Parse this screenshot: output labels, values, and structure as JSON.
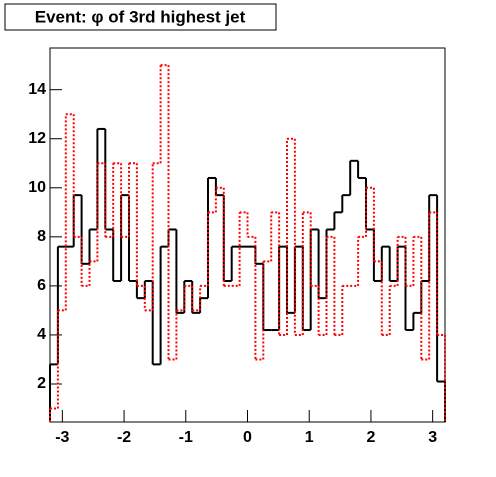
{
  "chart_data": {
    "type": "histogram",
    "title": "Event: φ of 3rd highest jet",
    "bins": [
      -3.2,
      -3.072,
      -2.944,
      -2.816,
      -2.688,
      -2.56,
      -2.432,
      -2.304,
      -2.176,
      -2.048,
      -1.92,
      -1.792,
      -1.664,
      -1.536,
      -1.408,
      -1.28,
      -1.152,
      -1.024,
      -0.896,
      -0.768,
      -0.64,
      -0.512,
      -0.384,
      -0.256,
      -0.128,
      0,
      0.128,
      0.256,
      0.384,
      0.512,
      0.64,
      0.768,
      0.896,
      1.024,
      1.152,
      1.28,
      1.408,
      1.536,
      1.664,
      1.792,
      1.92,
      2.048,
      2.176,
      2.304,
      2.432,
      2.56,
      2.688,
      2.816,
      2.944,
      3.072,
      3.2
    ],
    "series": [
      {
        "color": "#000000",
        "style": "solid",
        "values": [
          2.8,
          7.6,
          7.6,
          9.7,
          6.9,
          8.3,
          12.4,
          8.3,
          6.2,
          9.7,
          6.2,
          5.5,
          6.2,
          2.8,
          7.6,
          8.3,
          4.9,
          6.2,
          4.9,
          5.5,
          10.4,
          9.7,
          6.2,
          7.6,
          7.6,
          7.6,
          6.9,
          4.2,
          4.2,
          7.6,
          4.9,
          7.6,
          4.2,
          8.3,
          5.5,
          8.3,
          9.0,
          9.7,
          11.1,
          10.4,
          8.3,
          6.2,
          7.6,
          6.2,
          7.6,
          4.2,
          4.9,
          6.2,
          9.7,
          2.1
        ]
      },
      {
        "color": "#ff0000",
        "style": "dotted",
        "values": [
          1,
          5,
          13,
          8,
          6,
          7,
          11,
          8,
          11,
          8,
          11,
          6,
          5,
          11,
          15,
          3,
          5,
          6,
          5,
          6,
          9,
          10,
          6,
          6,
          9,
          8,
          3,
          7,
          9,
          4,
          12,
          4,
          9,
          6,
          4,
          8,
          4,
          6,
          6,
          8,
          10,
          7,
          4,
          6,
          8,
          6,
          8,
          3,
          9,
          4
        ]
      }
    ],
    "xlim": [
      -3.2,
      3.2
    ],
    "ylim": [
      0.45,
      15.7
    ],
    "xticks": [
      -3,
      -2,
      -1,
      0,
      1,
      2,
      3
    ],
    "yticks": [
      2,
      4,
      6,
      8,
      10,
      12,
      14
    ]
  }
}
